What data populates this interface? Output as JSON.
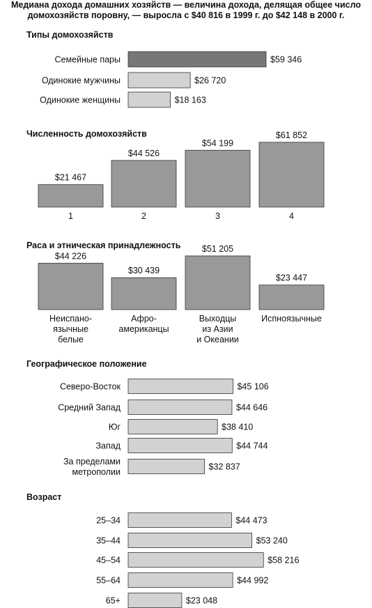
{
  "title_lines": [
    "Медиана дохода домашних хозяйств — величина дохода, делящая общее число",
    "домохозяйств поровну, — выросла с $40 816 в 1999 г. до $42 148 в 2000 г."
  ],
  "colors": {
    "dark_bar": "#777777",
    "medium_bar": "#999999",
    "light_bar": "#d2d2d2",
    "bar_stroke": "#333333"
  },
  "chart_data": [
    {
      "type": "bar",
      "orientation": "horizontal",
      "title": "Типы домохозяйств",
      "categories": [
        "Семейные пары",
        "Одинокие мужчины",
        "Одинокие женщины"
      ],
      "values": [
        59346,
        26720,
        18163
      ],
      "value_labels": [
        "$59 346",
        "$26 720",
        "$18 163"
      ],
      "highlight_index": 0
    },
    {
      "type": "bar",
      "orientation": "vertical",
      "title": "Численность домохозяйств",
      "categories": [
        "1",
        "2",
        "3",
        "4"
      ],
      "values": [
        21467,
        44526,
        54199,
        61852
      ],
      "value_labels": [
        "$21 467",
        "$44 526",
        "$54 199",
        "$61 852"
      ]
    },
    {
      "type": "bar",
      "orientation": "vertical",
      "title": "Раса и этническая принадлежность",
      "categories": [
        "Неиспано-\nязычные\nбелые",
        "Афро-\nамериканцы",
        "Выходцы\nиз Азии\nи Океании",
        "Испноязычные"
      ],
      "values": [
        44226,
        30439,
        51205,
        23447
      ],
      "value_labels": [
        "$44 226",
        "$30 439",
        "$51 205",
        "$23 447"
      ]
    },
    {
      "type": "bar",
      "orientation": "horizontal",
      "title": "Географическое положение",
      "categories": [
        "Северо-Восток",
        "Средний Запад",
        "Юг",
        "Запад",
        "За пределами\nметрополии"
      ],
      "values": [
        45106,
        44646,
        38410,
        44744,
        32837
      ],
      "value_labels": [
        "$45 106",
        "$44 646",
        "$38 410",
        "$44 744",
        "$32 837"
      ]
    },
    {
      "type": "bar",
      "orientation": "horizontal",
      "title": "Возраст",
      "categories": [
        "25–34",
        "35–44",
        "45–54",
        "55–64",
        "65+"
      ],
      "values": [
        44473,
        53240,
        58216,
        44992,
        23048
      ],
      "value_labels": [
        "$44 473",
        "$53 240",
        "$58 216",
        "$44 992",
        "$23 048"
      ]
    }
  ]
}
